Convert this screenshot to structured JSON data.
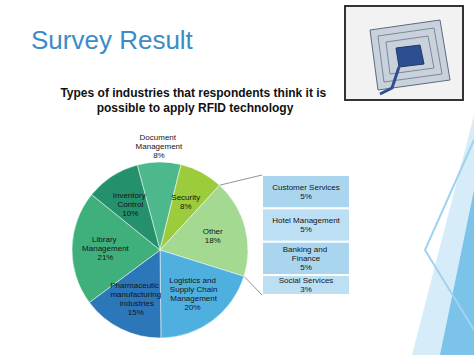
{
  "header": {
    "title": "Survey Result"
  },
  "chart_data": {
    "type": "pie",
    "title": "Types of industries that respondents think it is possible to apply RFID technology",
    "categories": [
      "Document Management",
      "Security",
      "Other",
      "Logistics and Supply Chain Management",
      "Pharmaceutic manufacturing industries",
      "Library Management",
      "Inventory Control"
    ],
    "values": [
      8,
      8,
      18,
      20,
      15,
      21,
      10
    ],
    "value_labels": [
      "8%",
      "8%",
      "18%",
      "20%",
      "15%",
      "21%",
      "10%"
    ],
    "colors": [
      "#4cb88c",
      "#9ccc3c",
      "#a3d991",
      "#4fb0e0",
      "#2b77b9",
      "#3fb07c",
      "#24906c"
    ],
    "data_labels": true,
    "breakdown": {
      "of": "Other",
      "type": "bar",
      "stacked": true,
      "categories": [
        "Customer Services",
        "Hotel Management",
        "Banking and Finance",
        "Social Services"
      ],
      "values": [
        5,
        5,
        5,
        3
      ],
      "value_labels": [
        "5%",
        "5%",
        "5%",
        "3%"
      ],
      "colors": [
        "#aad5ef",
        "#bddff3",
        "#aad5ef",
        "#bddff3"
      ]
    }
  }
}
